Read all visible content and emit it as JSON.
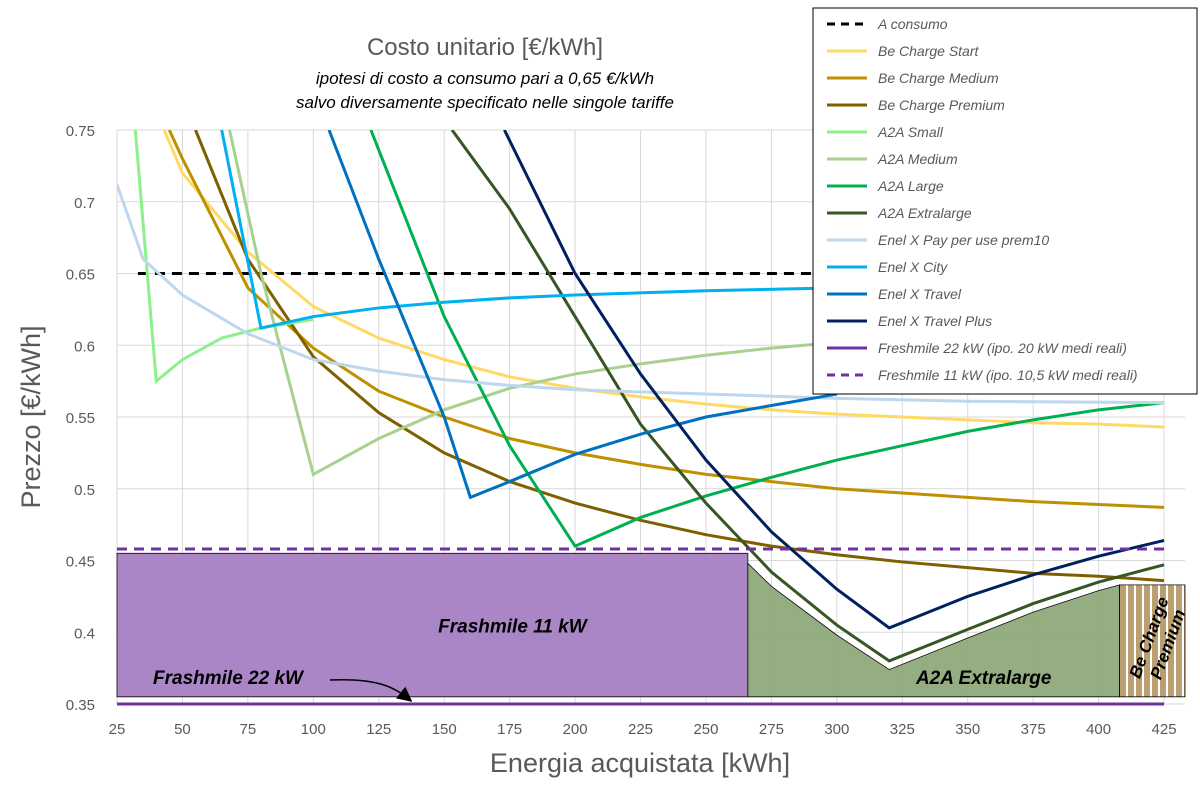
{
  "chart_data": {
    "type": "line",
    "title": "Costo unitario [€/kWh]",
    "subtitle": [
      "ipotesi di costo a consumo pari a 0,65 €/kWh",
      "salvo diversamente specificato nelle singole tariffe"
    ],
    "x_label": "Energia acquistata [kWh]",
    "y_label": "Prezzo [€/kWh]",
    "xlim": [
      25,
      433
    ],
    "ylim": [
      0.35,
      0.75
    ],
    "xticks": [
      25,
      50,
      75,
      100,
      125,
      150,
      175,
      200,
      225,
      250,
      275,
      300,
      325,
      350,
      375,
      400,
      425
    ],
    "yticks": [
      0.35,
      0.4,
      0.45,
      0.5,
      0.55,
      0.6,
      0.65,
      0.7,
      0.75
    ],
    "grid": true,
    "legend": "top-right",
    "series": [
      {
        "name": "A consumo",
        "color": "#000000",
        "dashed": true,
        "x": [
          33,
          425
        ],
        "values": [
          0.65,
          0.65
        ]
      },
      {
        "name": "Be Charge Start",
        "color": "#ffd966",
        "x": [
          43,
          50,
          75,
          100,
          125,
          150,
          175,
          200,
          225,
          250,
          275,
          300,
          325,
          350,
          375,
          400,
          425
        ],
        "values": [
          0.75,
          0.72,
          0.665,
          0.627,
          0.605,
          0.59,
          0.578,
          0.57,
          0.564,
          0.559,
          0.555,
          0.552,
          0.55,
          0.548,
          0.546,
          0.545,
          0.543
        ]
      },
      {
        "name": "Be Charge Medium",
        "color": "#bf9000",
        "x": [
          45,
          50,
          75,
          100,
          125,
          150,
          175,
          200,
          225,
          250,
          275,
          300,
          325,
          350,
          375,
          400,
          425
        ],
        "values": [
          0.75,
          0.73,
          0.64,
          0.598,
          0.568,
          0.55,
          0.535,
          0.525,
          0.517,
          0.51,
          0.505,
          0.5,
          0.497,
          0.494,
          0.491,
          0.489,
          0.487
        ]
      },
      {
        "name": "Be Charge Premium",
        "color": "#7f6000",
        "x": [
          55,
          75,
          100,
          125,
          150,
          175,
          200,
          225,
          250,
          275,
          300,
          325,
          350,
          375,
          400,
          425
        ],
        "values": [
          0.75,
          0.66,
          0.592,
          0.553,
          0.525,
          0.505,
          0.49,
          0.478,
          0.468,
          0.46,
          0.454,
          0.449,
          0.445,
          0.441,
          0.439,
          0.436
        ]
      },
      {
        "name": "A2A Small",
        "color": "#8cf08c",
        "x": [
          32,
          40,
          50,
          65,
          80,
          100
        ],
        "values": [
          0.75,
          0.575,
          0.59,
          0.605,
          0.612,
          0.618
        ]
      },
      {
        "name": "A2A Medium",
        "color": "#a9d18e",
        "x": [
          68,
          80,
          100,
          125,
          150,
          175,
          200,
          225,
          250,
          275,
          300,
          325
        ],
        "values": [
          0.75,
          0.65,
          0.51,
          0.535,
          0.555,
          0.57,
          0.58,
          0.587,
          0.593,
          0.598,
          0.602,
          0.605
        ]
      },
      {
        "name": "A2A Large",
        "color": "#00b050",
        "x": [
          122,
          150,
          175,
          200,
          225,
          250,
          275,
          300,
          325,
          350,
          375,
          400,
          425
        ],
        "values": [
          0.75,
          0.62,
          0.53,
          0.46,
          0.48,
          0.495,
          0.508,
          0.52,
          0.53,
          0.54,
          0.548,
          0.555,
          0.56
        ]
      },
      {
        "name": "A2A Extralarge",
        "color": "#375623",
        "x": [
          153,
          175,
          200,
          225,
          250,
          275,
          300,
          320,
          350,
          375,
          400,
          425
        ],
        "values": [
          0.75,
          0.695,
          0.62,
          0.545,
          0.49,
          0.442,
          0.405,
          0.38,
          0.402,
          0.42,
          0.435,
          0.447
        ]
      },
      {
        "name": "Enel X Pay per use prem10",
        "color": "#bdd7ee",
        "x": [
          25,
          35,
          50,
          75,
          100,
          125,
          150,
          175,
          200,
          250,
          300,
          350,
          425
        ],
        "values": [
          0.712,
          0.66,
          0.635,
          0.608,
          0.59,
          0.582,
          0.576,
          0.572,
          0.569,
          0.566,
          0.563,
          0.561,
          0.56
        ]
      },
      {
        "name": "Enel X City",
        "color": "#00b0f0",
        "x": [
          65,
          80,
          100,
          125,
          150,
          175,
          200,
          250,
          300
        ],
        "values": [
          0.75,
          0.612,
          0.62,
          0.626,
          0.63,
          0.633,
          0.635,
          0.638,
          0.64
        ]
      },
      {
        "name": "Enel X Travel",
        "color": "#0070c0",
        "x": [
          106,
          125,
          150,
          160,
          175,
          200,
          225,
          250,
          275,
          300
        ],
        "values": [
          0.75,
          0.66,
          0.55,
          0.494,
          0.505,
          0.524,
          0.538,
          0.55,
          0.558,
          0.566
        ]
      },
      {
        "name": "Enel X Travel Plus",
        "color": "#002060",
        "x": [
          173,
          200,
          225,
          250,
          275,
          300,
          320,
          350,
          375,
          400,
          425
        ],
        "values": [
          0.75,
          0.65,
          0.58,
          0.52,
          0.47,
          0.43,
          0.403,
          0.425,
          0.44,
          0.453,
          0.464
        ]
      },
      {
        "name": "Freshmile 22 kW (ipo. 20 kW medi reali)",
        "color": "#7030a0",
        "x": [
          25,
          425
        ],
        "values": [
          0.35,
          0.35
        ]
      },
      {
        "name": "Freshmile 11 kW (ipo. 10,5 kW medi reali)",
        "color": "#7030a0",
        "dashed": true,
        "x": [
          25,
          425
        ],
        "values": [
          0.458,
          0.458
        ]
      }
    ],
    "regions": [
      {
        "label": [
          "Frashmile 11 kW"
        ],
        "color": "#a680c4",
        "bottom": 0.355,
        "x": [
          25,
          266
        ],
        "top": [
          0.455,
          0.455
        ]
      },
      {
        "label": [
          "A2A Extralarge"
        ],
        "color": "#8faa7c",
        "bottom": 0.355,
        "x": [
          266,
          275,
          300,
          320,
          350,
          375,
          400,
          408
        ],
        "top": [
          0.448,
          0.432,
          0.398,
          0.374,
          0.396,
          0.414,
          0.429,
          0.433
        ]
      },
      {
        "label": [
          "Be Charge",
          "Premium"
        ],
        "color": "#b89a6a",
        "bottom": 0.355,
        "x": [
          408,
          433
        ],
        "top": [
          0.433,
          0.433
        ]
      }
    ],
    "annotation": "Frashmile 22 kW"
  }
}
